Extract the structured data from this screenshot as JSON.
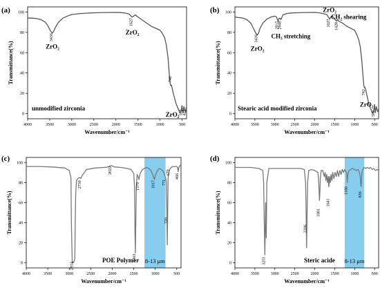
{
  "chart_data": [
    {
      "panel": "(a)",
      "type": "line",
      "xlabel": "Wavenumber/cm⁻¹",
      "ylabel": "Transmittance(%)",
      "xlim": [
        4000,
        400
      ],
      "ylim": [
        -5,
        105
      ],
      "x_ticks": [
        4000,
        3500,
        3000,
        2500,
        2000,
        1500,
        1000,
        500
      ],
      "y_ticks": [
        0,
        20,
        40,
        60,
        80,
        100
      ],
      "line_color": "#555555",
      "series": [
        {
          "x": [
            4000,
            3900,
            3800,
            3700,
            3600,
            3550,
            3500,
            3460,
            3436,
            3410,
            3370,
            3300,
            3200,
            3100,
            3000,
            2800,
            2600,
            2400,
            2200,
            2000,
            1900,
            1800,
            1700,
            1660,
            1627,
            1600,
            1560,
            1500,
            1400,
            1300,
            1200,
            1100,
            1000,
            950,
            900,
            860,
            820,
            790,
            770,
            755,
            742,
            725,
            700,
            670,
            640,
            600,
            570,
            550,
            530,
            515,
            502,
            495,
            490,
            480,
            460,
            440,
            421,
            410,
            400
          ],
          "y": [
            94,
            94,
            93.5,
            92.5,
            90,
            87,
            83,
            80,
            79.5,
            81,
            85,
            90,
            94,
            96,
            97.5,
            98.5,
            99,
            99.3,
            99.5,
            99.6,
            99.4,
            99,
            98,
            96,
            95,
            96,
            97,
            95,
            92,
            89,
            86,
            84,
            82,
            79,
            75,
            68,
            55,
            38,
            29,
            27.5,
            28,
            25,
            20,
            15,
            10,
            6,
            3,
            1,
            2,
            5,
            8,
            5,
            3,
            1,
            7,
            3,
            2,
            6,
            4
          ]
        }
      ],
      "annotations": [
        {
          "text": "3436",
          "x": 3436,
          "y": 75,
          "rot": true
        },
        {
          "text": "ZrO₂",
          "x": 3436,
          "y": 64,
          "bold": true
        },
        {
          "text": "1627",
          "x": 1627,
          "y": 90,
          "rot": true
        },
        {
          "text": "ZrO₂",
          "x": 1627,
          "y": 78,
          "bold": true
        },
        {
          "text": "742",
          "x": 742,
          "y": 34,
          "rot": true
        },
        {
          "text": "ZrO₂",
          "x": 720,
          "y": -3,
          "bold": true
        },
        {
          "text": "502",
          "x": 502,
          "y": 1,
          "rot": true
        },
        {
          "text": "421",
          "x": 421,
          "y": 1,
          "rot": true
        }
      ],
      "corner_text": "unmodified zirconia"
    },
    {
      "panel": "(b)",
      "type": "line",
      "xlabel": "Wavenumber/cm⁻¹",
      "ylabel": "Transmittance(%)",
      "xlim": [
        4000,
        400
      ],
      "ylim": [
        -5,
        105
      ],
      "x_ticks": [
        4000,
        3500,
        3000,
        2500,
        2000,
        1500,
        1000,
        500
      ],
      "y_ticks": [
        0,
        20,
        40,
        60,
        80,
        100
      ],
      "line_color": "#555555",
      "series": [
        {
          "x": [
            4000,
            3900,
            3800,
            3700,
            3600,
            3550,
            3500,
            3460,
            3436,
            3410,
            3370,
            3300,
            3200,
            3100,
            3000,
            2960,
            2930,
            2915,
            2900,
            2870,
            2848,
            2830,
            2800,
            2700,
            2600,
            2400,
            2200,
            2000,
            1900,
            1800,
            1700,
            1660,
            1627,
            1600,
            1560,
            1520,
            1480,
            1450,
            1428,
            1400,
            1300,
            1200,
            1100,
            1000,
            950,
            900,
            860,
            820,
            790,
            770,
            755,
            742,
            725,
            700,
            670,
            640,
            600,
            570,
            550,
            530,
            515,
            502,
            495,
            480,
            460,
            440,
            420,
            400
          ],
          "y": [
            95,
            94.5,
            94,
            92.5,
            89,
            85,
            81,
            78,
            77.5,
            79,
            84,
            89,
            93,
            95,
            96,
            95,
            92,
            91,
            93.5,
            94,
            92.5,
            94,
            97,
            98.5,
            99,
            99.3,
            99.5,
            99.6,
            99.2,
            98.5,
            97.5,
            95,
            93,
            95,
            96,
            94,
            92,
            91,
            92.5,
            91,
            89,
            86,
            84,
            82,
            78,
            73,
            66,
            52,
            36,
            27.5,
            25.5,
            26,
            24,
            19,
            14,
            9,
            5,
            2,
            0.5,
            2,
            5,
            9,
            5,
            1,
            7,
            4,
            2,
            5
          ]
        }
      ],
      "annotations": [
        {
          "text": "3436",
          "x": 3436,
          "y": 74,
          "rot": true
        },
        {
          "text": "ZrO₂",
          "x": 3436,
          "y": 62,
          "bold": true
        },
        {
          "text": "2915",
          "x": 2915,
          "y": 87,
          "rot": true
        },
        {
          "text": "2848",
          "x": 2848,
          "y": 87,
          "rot": true
        },
        {
          "text": "CH₃ stretching",
          "x": 2600,
          "y": 74,
          "bold": true
        },
        {
          "text": "1627",
          "x": 1627,
          "y": 89,
          "rot": true
        },
        {
          "text": "1428",
          "x": 1428,
          "y": 86,
          "rot": true
        },
        {
          "text": "ZrO₂",
          "x": 1627,
          "y": 100,
          "bold": true
        },
        {
          "text": "CH₂ shearing",
          "x": 1150,
          "y": 93,
          "bold": true
        },
        {
          "text": "742",
          "x": 742,
          "y": 21,
          "rot": true
        },
        {
          "text": "ZrO₂",
          "x": 700,
          "y": 7,
          "bold": true
        },
        {
          "text": "502",
          "x": 502,
          "y": 0,
          "rot": true
        }
      ],
      "corner_text": "Stearic acid modified zirconia"
    },
    {
      "panel": "(c)",
      "type": "line",
      "xlabel": "Wavenumber/cm⁻¹",
      "ylabel": "Transmittance(%)",
      "xlim": [
        4000,
        400
      ],
      "ylim": [
        -5,
        105
      ],
      "x_ticks": [
        4000,
        3500,
        3000,
        2500,
        2000,
        1500,
        1000,
        500
      ],
      "y_ticks": [
        0,
        20,
        40,
        60,
        80,
        100
      ],
      "line_color": "#777777",
      "highlight": {
        "x1": 1250,
        "x2": 760,
        "label": "8-13 μm",
        "color": "#86cdee"
      },
      "series": [
        {
          "x": [
            4000,
            3700,
            3400,
            3100,
            3000,
            2960,
            2950,
            2930,
            2920,
            2914,
            2905,
            2880,
            2870,
            2860,
            2850,
            2830,
            2800,
            2760,
            2730,
            2700,
            2600,
            2400,
            2200,
            2100,
            2022,
            1950,
            1800,
            1650,
            1560,
            1500,
            1480,
            1470,
            1463,
            1455,
            1440,
            1420,
            1390,
            1379,
            1370,
            1350,
            1300,
            1250,
            1200,
            1150,
            1100,
            1060,
            1030,
            1017,
            1000,
            970,
            930,
            900,
            860,
            830,
            800,
            780,
            771,
            760,
            740,
            728,
            720,
            712,
            700,
            670,
            650,
            600,
            530,
            500,
            480,
            466,
            455,
            440,
            420,
            400
          ],
          "y": [
            96,
            96,
            95.5,
            94.5,
            92,
            85,
            40,
            0,
            0,
            1,
            0,
            2,
            5,
            40,
            70,
            82,
            84,
            85,
            84,
            87,
            93,
            94.5,
            95,
            95.5,
            97,
            95.5,
            95,
            94,
            93,
            89,
            75,
            30,
            10,
            32,
            75,
            88,
            85,
            83,
            85,
            89,
            93,
            94,
            95,
            94,
            92,
            88,
            84,
            83,
            87,
            90,
            93,
            94,
            93,
            92,
            90,
            87,
            86,
            85,
            80,
            50,
            18,
            45,
            85,
            92,
            94,
            96,
            96,
            96,
            95,
            91,
            94,
            96,
            97,
            98
          ]
        }
      ],
      "annotations": [
        {
          "text": "2914",
          "x": 2914,
          "y": -3,
          "rot": true
        },
        {
          "text": "2730",
          "x": 2730,
          "y": 78,
          "rot": true
        },
        {
          "text": "2022",
          "x": 2022,
          "y": 92,
          "rot": true
        },
        {
          "text": "1463",
          "x": 1463,
          "y": 5,
          "rot": true
        },
        {
          "text": "1379",
          "x": 1379,
          "y": 76,
          "rot": true
        },
        {
          "text": "1017",
          "x": 1017,
          "y": 78,
          "rot": true
        },
        {
          "text": "771",
          "x": 771,
          "y": 80,
          "rot": true
        },
        {
          "text": "720",
          "x": 720,
          "y": 42,
          "rot": true
        },
        {
          "text": "670",
          "x": 670,
          "y": 90,
          "rot": true
        },
        {
          "text": "466",
          "x": 466,
          "y": 86,
          "rot": true
        }
      ],
      "corner_text": "POE Polymer"
    },
    {
      "panel": "(d)",
      "type": "line",
      "xlabel": "Wavenumber/cm⁻¹",
      "ylabel": "Transmittance(%)",
      "xlim": [
        4000,
        400
      ],
      "ylim": [
        -5,
        105
      ],
      "x_ticks": [
        4000,
        3500,
        3000,
        2500,
        2000,
        1500,
        1000,
        500
      ],
      "y_ticks": [
        0,
        20,
        40,
        60,
        80,
        100
      ],
      "line_color": "#777777",
      "highlight": {
        "x1": 1250,
        "x2": 760,
        "label": "8-13 μm",
        "color": "#86cdee"
      },
      "series": [
        {
          "x": [
            4000,
            3800,
            3600,
            3400,
            3300,
            3280,
            3265,
            3251,
            3240,
            3230,
            3215,
            3200,
            3150,
            3050,
            2900,
            2700,
            2500,
            2350,
            2260,
            2230,
            2215,
            2206,
            2195,
            2180,
            2150,
            2080,
            2000,
            1920,
            1900,
            1890,
            1881,
            1870,
            1860,
            1840,
            1800,
            1760,
            1740,
            1720,
            1700,
            1680,
            1660,
            1650,
            1641,
            1630,
            1610,
            1590,
            1570,
            1550,
            1520,
            1490,
            1460,
            1430,
            1400,
            1370,
            1340,
            1310,
            1280,
            1250,
            1220,
            1200,
            1186,
            1170,
            1140,
            1100,
            1060,
            1000,
            960,
            920,
            880,
            860,
            848,
            836,
            825,
            815,
            800,
            760,
            720,
            680,
            640,
            600,
            560,
            520,
            480,
            440,
            400
          ],
          "y": [
            95,
            95,
            95,
            94,
            92,
            80,
            40,
            8,
            30,
            60,
            25,
            80,
            94,
            94,
            94,
            94,
            94,
            94,
            93,
            80,
            50,
            15,
            40,
            80,
            92,
            93,
            92,
            90,
            80,
            70,
            62,
            72,
            84,
            92,
            92,
            86,
            90,
            82,
            88,
            80,
            86,
            76,
            78,
            86,
            80,
            88,
            82,
            90,
            84,
            90,
            86,
            92,
            86,
            92,
            88,
            93,
            90,
            93,
            91,
            90,
            80,
            88,
            92,
            93,
            94,
            93,
            92,
            93,
            90,
            86,
            78,
            76,
            84,
            90,
            93,
            95,
            94,
            95,
            94,
            95,
            93,
            94,
            92,
            93,
            92
          ]
        }
      ],
      "annotations": [
        {
          "text": "3251",
          "x": 3251,
          "y": 2,
          "rot": true
        },
        {
          "text": "2206",
          "x": 2206,
          "y": 34,
          "rot": true
        },
        {
          "text": "1881",
          "x": 1881,
          "y": 50,
          "rot": true
        },
        {
          "text": "1641",
          "x": 1641,
          "y": 60,
          "rot": true
        },
        {
          "text": "1186",
          "x": 1186,
          "y": 72,
          "rot": true
        },
        {
          "text": "836",
          "x": 836,
          "y": 68,
          "rot": true
        }
      ],
      "corner_text": "Steric acide"
    }
  ]
}
